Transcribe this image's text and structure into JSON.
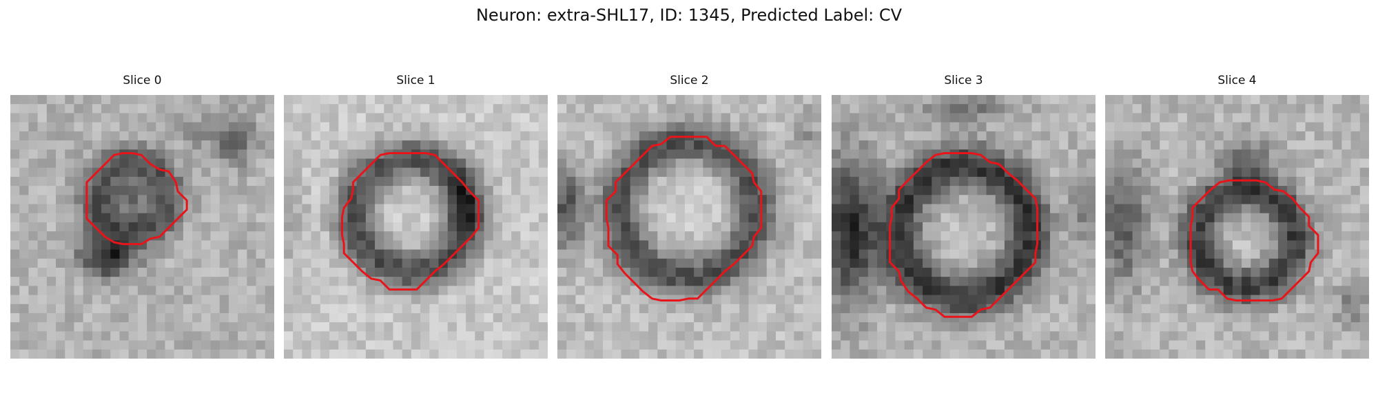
{
  "figure": {
    "title": "Neuron: extra-SHL17, ID: 1345, Predicted Label: CV"
  },
  "panels": [
    {
      "title": "Slice 0"
    },
    {
      "title": "Slice 1"
    },
    {
      "title": "Slice 2"
    },
    {
      "title": "Slice 3"
    },
    {
      "title": "Slice 4"
    }
  ],
  "style": {
    "contour_color": "#e8141a",
    "colormap": "grayscale"
  }
}
